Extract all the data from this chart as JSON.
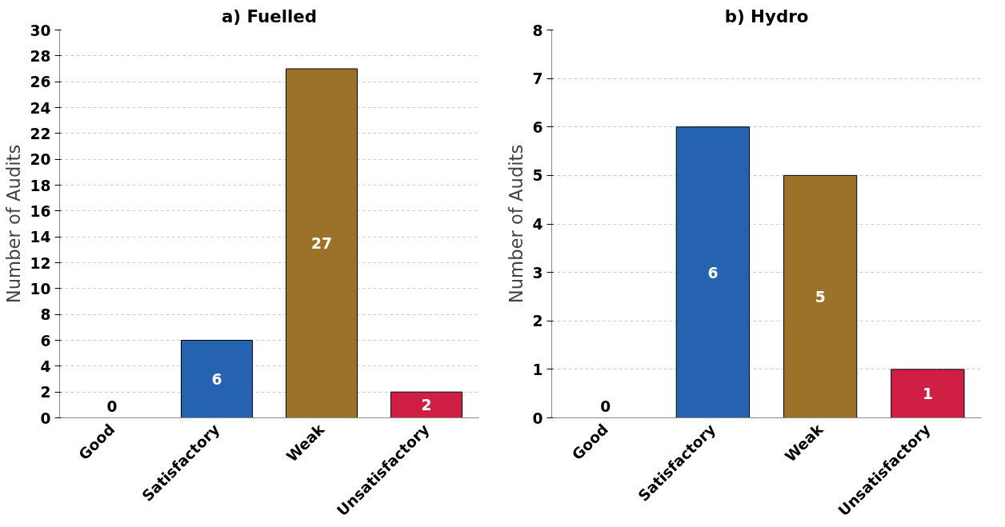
{
  "chart_data": [
    {
      "type": "bar",
      "title": "a) Fuelled",
      "ylabel": "Number of Audits",
      "categories": [
        "Good",
        "Satisfactory",
        "Weak",
        "Unsatisfactory"
      ],
      "values": [
        0,
        6,
        27,
        2
      ],
      "colors": [
        "#000000",
        "#2563b0",
        "#9c722b",
        "#d01f45"
      ],
      "ylim": [
        0,
        30
      ],
      "yticks": [
        0,
        2,
        4,
        6,
        8,
        10,
        12,
        14,
        16,
        18,
        20,
        22,
        24,
        26,
        28,
        30
      ],
      "grid": "y",
      "data_labels": true
    },
    {
      "type": "bar",
      "title": "b) Hydro",
      "ylabel": "Number of Audits",
      "categories": [
        "Good",
        "Satisfactory",
        "Weak",
        "Unsatisfactory"
      ],
      "values": [
        0,
        6,
        5,
        1
      ],
      "colors": [
        "#000000",
        "#2563b0",
        "#9c722b",
        "#d01f45"
      ],
      "ylim": [
        0,
        8
      ],
      "yticks": [
        0,
        1,
        2,
        3,
        4,
        5,
        6,
        7,
        8
      ],
      "grid": "y",
      "data_labels": true
    }
  ]
}
